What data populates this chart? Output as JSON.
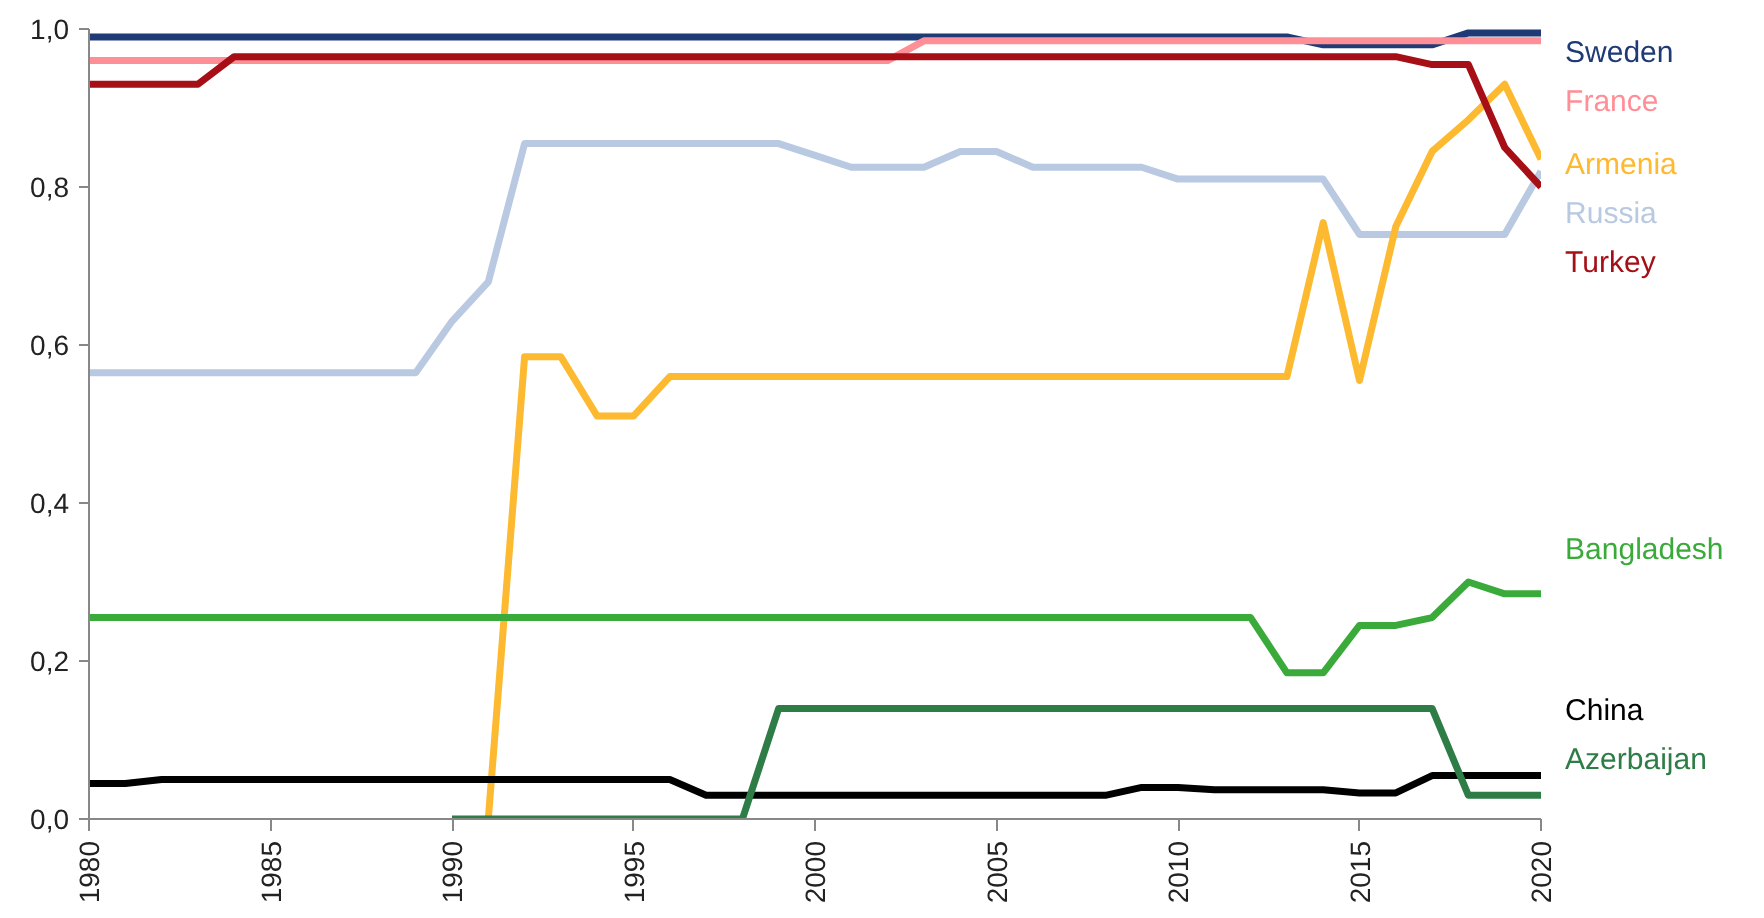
{
  "chart_data": {
    "type": "line",
    "grid": false,
    "xlim": [
      1980,
      2020
    ],
    "xticks": [
      1980,
      1985,
      1990,
      1995,
      2000,
      2005,
      2010,
      2015,
      2020
    ],
    "ylim": [
      0,
      1
    ],
    "yticks": [
      {
        "value": 0,
        "label": "0,0"
      },
      {
        "value": 0.2,
        "label": "0,2"
      },
      {
        "value": 0.4,
        "label": "0,4"
      },
      {
        "value": 0.6,
        "label": "0,6"
      },
      {
        "value": 0.8,
        "label": "0,8"
      },
      {
        "value": 1,
        "label": "1,0"
      }
    ],
    "x": [
      1980,
      1981,
      1982,
      1983,
      1984,
      1985,
      1986,
      1987,
      1988,
      1989,
      1990,
      1991,
      1992,
      1993,
      1994,
      1995,
      1996,
      1997,
      1998,
      1999,
      2000,
      2001,
      2002,
      2003,
      2004,
      2005,
      2006,
      2007,
      2008,
      2009,
      2010,
      2011,
      2012,
      2013,
      2014,
      2015,
      2016,
      2017,
      2018,
      2019,
      2020
    ],
    "series": [
      {
        "name": "Sweden",
        "color": "#1f3a75",
        "values": [
          0.99,
          0.99,
          0.99,
          0.99,
          0.99,
          0.99,
          0.99,
          0.99,
          0.99,
          0.99,
          0.99,
          0.99,
          0.99,
          0.99,
          0.99,
          0.99,
          0.99,
          0.99,
          0.99,
          0.99,
          0.99,
          0.99,
          0.99,
          0.99,
          0.99,
          0.99,
          0.99,
          0.99,
          0.99,
          0.99,
          0.99,
          0.99,
          0.99,
          0.99,
          0.98,
          0.98,
          0.98,
          0.98,
          0.995,
          0.995,
          0.995
        ]
      },
      {
        "name": "France",
        "color": "#ff8f97",
        "values": [
          0.96,
          0.96,
          0.96,
          0.96,
          0.96,
          0.96,
          0.96,
          0.96,
          0.96,
          0.96,
          0.96,
          0.96,
          0.96,
          0.96,
          0.96,
          0.96,
          0.96,
          0.96,
          0.96,
          0.96,
          0.96,
          0.96,
          0.96,
          0.985,
          0.985,
          0.985,
          0.985,
          0.985,
          0.985,
          0.985,
          0.985,
          0.985,
          0.985,
          0.985,
          0.985,
          0.985,
          0.985,
          0.985,
          0.985,
          0.985,
          0.985
        ]
      },
      {
        "name": "Russia",
        "color": "#b8c9e1",
        "values": [
          0.565,
          0.565,
          0.565,
          0.565,
          0.565,
          0.565,
          0.565,
          0.565,
          0.565,
          0.565,
          0.63,
          0.68,
          0.855,
          0.855,
          0.855,
          0.855,
          0.855,
          0.855,
          0.855,
          0.855,
          0.84,
          0.825,
          0.825,
          0.825,
          0.845,
          0.845,
          0.825,
          0.825,
          0.825,
          0.825,
          0.81,
          0.81,
          0.81,
          0.81,
          0.81,
          0.74,
          0.74,
          0.74,
          0.74,
          0.74,
          0.82
        ]
      },
      {
        "name": "Armenia",
        "color": "#fdb92f",
        "x": [
          1991,
          1992,
          1993,
          1994,
          1995,
          1996,
          1997,
          1998,
          1999,
          2000,
          2001,
          2002,
          2003,
          2004,
          2005,
          2006,
          2007,
          2008,
          2009,
          2010,
          2011,
          2012,
          2013,
          2014,
          2015,
          2016,
          2017,
          2018,
          2019,
          2020
        ],
        "values": [
          0,
          0.585,
          0.585,
          0.51,
          0.51,
          0.56,
          0.56,
          0.56,
          0.56,
          0.56,
          0.56,
          0.56,
          0.56,
          0.56,
          0.56,
          0.56,
          0.56,
          0.56,
          0.56,
          0.56,
          0.56,
          0.56,
          0.56,
          0.755,
          0.555,
          0.75,
          0.845,
          0.885,
          0.93,
          0.835
        ]
      },
      {
        "name": "Turkey",
        "color": "#a50f15",
        "values": [
          0.93,
          0.93,
          0.93,
          0.93,
          0.965,
          0.965,
          0.965,
          0.965,
          0.965,
          0.965,
          0.965,
          0.965,
          0.965,
          0.965,
          0.965,
          0.965,
          0.965,
          0.965,
          0.965,
          0.965,
          0.965,
          0.965,
          0.965,
          0.965,
          0.965,
          0.965,
          0.965,
          0.965,
          0.965,
          0.965,
          0.965,
          0.965,
          0.965,
          0.965,
          0.965,
          0.965,
          0.965,
          0.955,
          0.955,
          0.85,
          0.8
        ]
      },
      {
        "name": "Bangladesh",
        "color": "#3aaa3a",
        "values": [
          0.255,
          0.255,
          0.255,
          0.255,
          0.255,
          0.255,
          0.255,
          0.255,
          0.255,
          0.255,
          0.255,
          0.255,
          0.255,
          0.255,
          0.255,
          0.255,
          0.255,
          0.255,
          0.255,
          0.255,
          0.255,
          0.255,
          0.255,
          0.255,
          0.255,
          0.255,
          0.255,
          0.255,
          0.255,
          0.255,
          0.255,
          0.255,
          0.255,
          0.185,
          0.185,
          0.245,
          0.245,
          0.255,
          0.3,
          0.285,
          0.285
        ]
      },
      {
        "name": "China",
        "color": "#000000",
        "values": [
          0.045,
          0.045,
          0.05,
          0.05,
          0.05,
          0.05,
          0.05,
          0.05,
          0.05,
          0.05,
          0.05,
          0.05,
          0.05,
          0.05,
          0.05,
          0.05,
          0.05,
          0.03,
          0.03,
          0.03,
          0.03,
          0.03,
          0.03,
          0.03,
          0.03,
          0.03,
          0.03,
          0.03,
          0.03,
          0.04,
          0.04,
          0.037,
          0.037,
          0.037,
          0.037,
          0.033,
          0.033,
          0.055,
          0.055,
          0.055,
          0.055
        ]
      },
      {
        "name": "Azerbaijan",
        "color": "#2e7d46",
        "x": [
          1990,
          1991,
          1992,
          1993,
          1994,
          1995,
          1996,
          1997,
          1998,
          1999,
          2000,
          2001,
          2002,
          2003,
          2004,
          2005,
          2006,
          2007,
          2008,
          2009,
          2010,
          2011,
          2012,
          2013,
          2014,
          2015,
          2016,
          2017,
          2018,
          2019,
          2020
        ],
        "values": [
          0,
          0,
          0,
          0,
          0,
          0,
          0,
          0,
          0,
          0.14,
          0.14,
          0.14,
          0.14,
          0.14,
          0.14,
          0.14,
          0.14,
          0.14,
          0.14,
          0.14,
          0.14,
          0.14,
          0.14,
          0.14,
          0.14,
          0.14,
          0.14,
          0.14,
          0.03,
          0.03,
          0.03
        ]
      }
    ]
  }
}
